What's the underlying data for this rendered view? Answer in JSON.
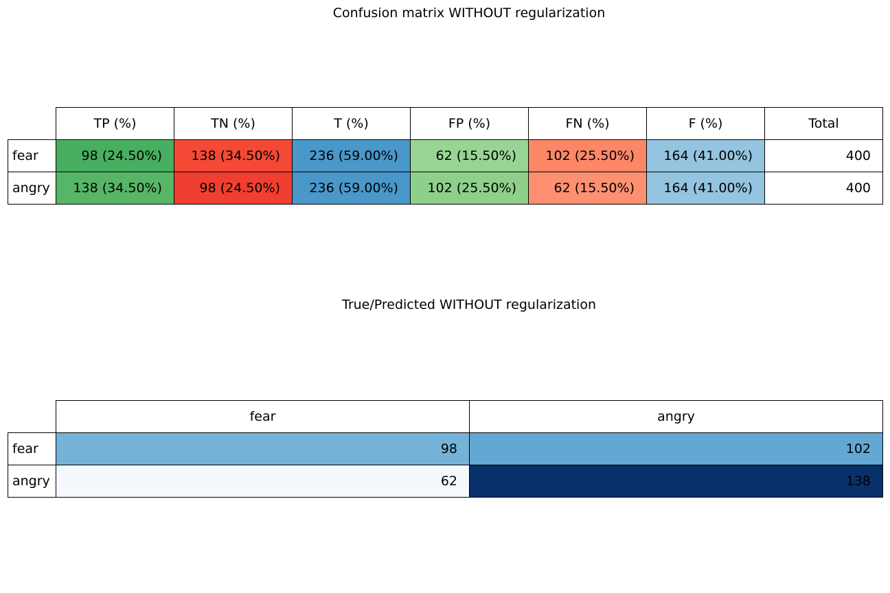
{
  "table1": {
    "title": "Confusion matrix WITHOUT regularization",
    "columns": [
      "TP (%)",
      "TN (%)",
      "T (%)",
      "FP (%)",
      "FN (%)",
      "F (%)",
      "Total"
    ],
    "rows": [
      {
        "label": "fear",
        "cells": [
          "98 (24.50%)",
          "138 (34.50%)",
          "236 (59.00%)",
          "62 (15.50%)",
          "102 (25.50%)",
          "164 (41.00%)",
          "400"
        ],
        "colors": [
          "#48ae60",
          "#f34935",
          "#4a97c9",
          "#98d594",
          "#fc8767",
          "#94c4df",
          "#ffffff"
        ]
      },
      {
        "label": "angry",
        "cells": [
          "138 (34.50%)",
          "98 (24.50%)",
          "236 (59.00%)",
          "102 (25.50%)",
          "62 (15.50%)",
          "164 (41.00%)",
          "400"
        ],
        "colors": [
          "#57b567",
          "#f03e30",
          "#4a97c9",
          "#8ed08b",
          "#fc9070",
          "#94c4df",
          "#ffffff"
        ]
      }
    ]
  },
  "table2": {
    "title": "True/Predicted WITHOUT regularization",
    "columns": [
      "fear",
      "angry"
    ],
    "rows": [
      {
        "label": "fear",
        "cells": [
          "98",
          "102"
        ],
        "colors": [
          "#75b2d8",
          "#62a8d3"
        ]
      },
      {
        "label": "angry",
        "cells": [
          "62",
          "138"
        ],
        "colors": [
          "#f5f9fe",
          "#08306b"
        ]
      }
    ]
  },
  "chart_data": [
    {
      "type": "table",
      "title": "Confusion matrix WITHOUT regularization",
      "columns": [
        "TP (%)",
        "TN (%)",
        "T (%)",
        "FP (%)",
        "FN (%)",
        "F (%)",
        "Total"
      ],
      "row_labels": [
        "fear",
        "angry"
      ],
      "values": [
        [
          98,
          138,
          236,
          62,
          102,
          164,
          400
        ],
        [
          138,
          98,
          236,
          102,
          62,
          164,
          400
        ]
      ],
      "percentages": [
        [
          24.5,
          34.5,
          59.0,
          15.5,
          25.5,
          41.0,
          null
        ],
        [
          34.5,
          24.5,
          59.0,
          25.5,
          15.5,
          41.0,
          null
        ]
      ]
    },
    {
      "type": "heatmap",
      "title": "True/Predicted WITHOUT regularization",
      "columns": [
        "fear",
        "angry"
      ],
      "row_labels": [
        "fear",
        "angry"
      ],
      "values": [
        [
          98,
          102
        ],
        [
          62,
          138
        ]
      ],
      "colormap": "Blues"
    }
  ]
}
